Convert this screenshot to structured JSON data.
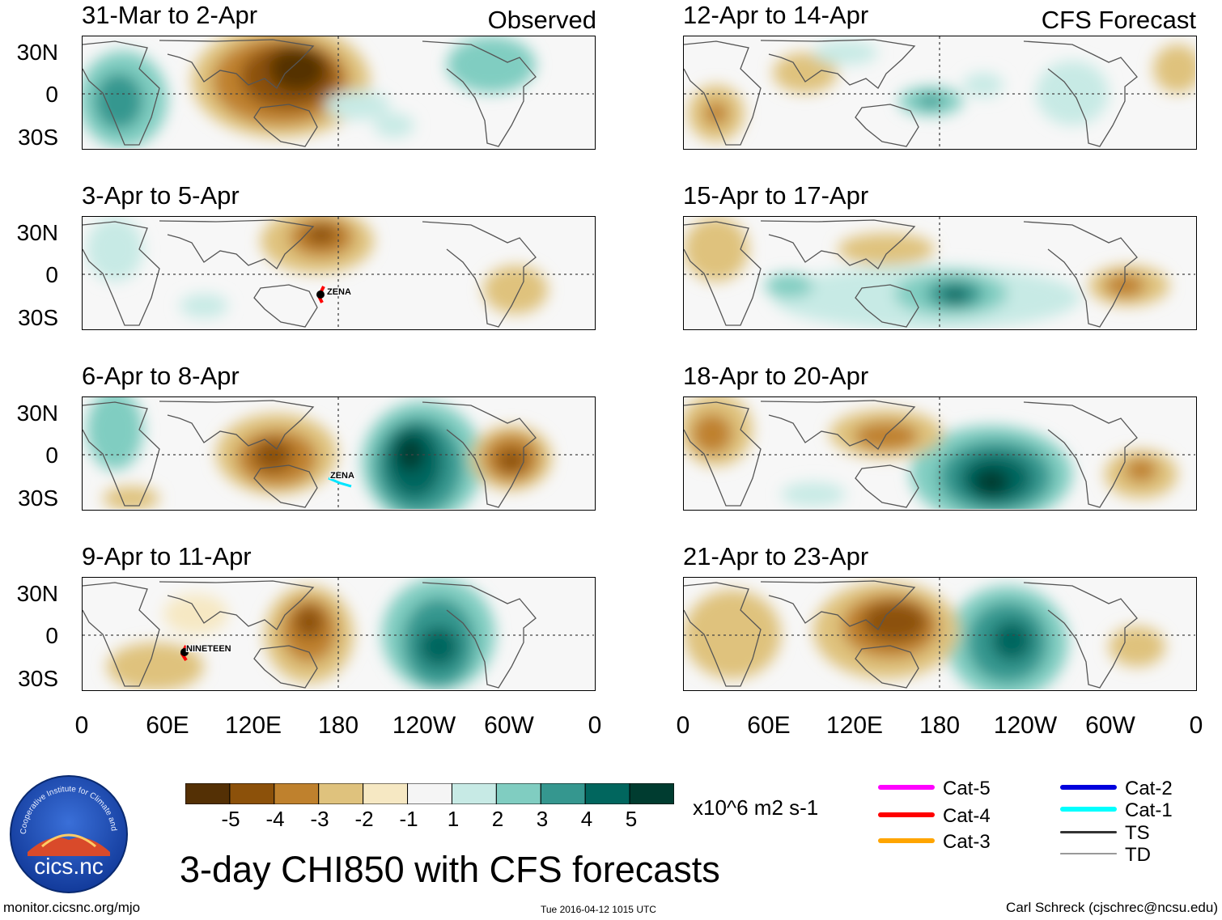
{
  "header": {
    "observed_label": "Observed",
    "forecast_label": "CFS Forecast"
  },
  "panels": [
    {
      "title": "31-Mar to 2-Apr",
      "kind": "observed",
      "storm": ""
    },
    {
      "title": "3-Apr to 5-Apr",
      "kind": "observed",
      "storm": "ZENA"
    },
    {
      "title": "6-Apr to 8-Apr",
      "kind": "observed",
      "storm": "ZENA"
    },
    {
      "title": "9-Apr to 11-Apr",
      "kind": "observed",
      "storm": "NINETEEN"
    },
    {
      "title": "12-Apr to 14-Apr",
      "kind": "forecast",
      "storm": ""
    },
    {
      "title": "15-Apr to 17-Apr",
      "kind": "forecast",
      "storm": ""
    },
    {
      "title": "18-Apr to 20-Apr",
      "kind": "forecast",
      "storm": ""
    },
    {
      "title": "21-Apr to 23-Apr",
      "kind": "forecast",
      "storm": ""
    }
  ],
  "axes": {
    "lat_labels": [
      "30N",
      "0",
      "30S"
    ],
    "lon_labels": [
      "0",
      "60E",
      "120E",
      "180",
      "120W",
      "60W",
      "0"
    ]
  },
  "colorbar": {
    "labels": [
      "-5",
      "-4",
      "-3",
      "-2",
      "-1",
      "1",
      "2",
      "3",
      "4",
      "5"
    ],
    "colors": [
      "#543005",
      "#8c510a",
      "#bf812d",
      "#dfc27d",
      "#f6e8c3",
      "#f5f5f5",
      "#c7eae5",
      "#80cdc1",
      "#35978f",
      "#01665e",
      "#003c30"
    ],
    "units": "x10^6 m2 s-1"
  },
  "storm_legend": [
    {
      "label": "Cat-5",
      "color": "#ff00ff"
    },
    {
      "label": "Cat-4",
      "color": "#ff0000"
    },
    {
      "label": "Cat-3",
      "color": "#ffa500"
    },
    {
      "label": "Cat-2",
      "color": "#0000dd"
    },
    {
      "label": "Cat-1",
      "color": "#00ffff"
    },
    {
      "label": "TS",
      "color": "#333333"
    },
    {
      "label": "TD",
      "color": "#999999"
    }
  ],
  "logo": {
    "text": "cics.nc",
    "ring_text": "Cooperative Institute for Climate and Satellites"
  },
  "main_title": "3-day CHI850 with CFS forecasts",
  "footer": {
    "url": "monitor.cicsnc.org/mjo",
    "timestamp": "Tue 2016-04-12 1015 UTC",
    "author": "Carl Schreck (cjschrec@ncsu.edu)"
  }
}
